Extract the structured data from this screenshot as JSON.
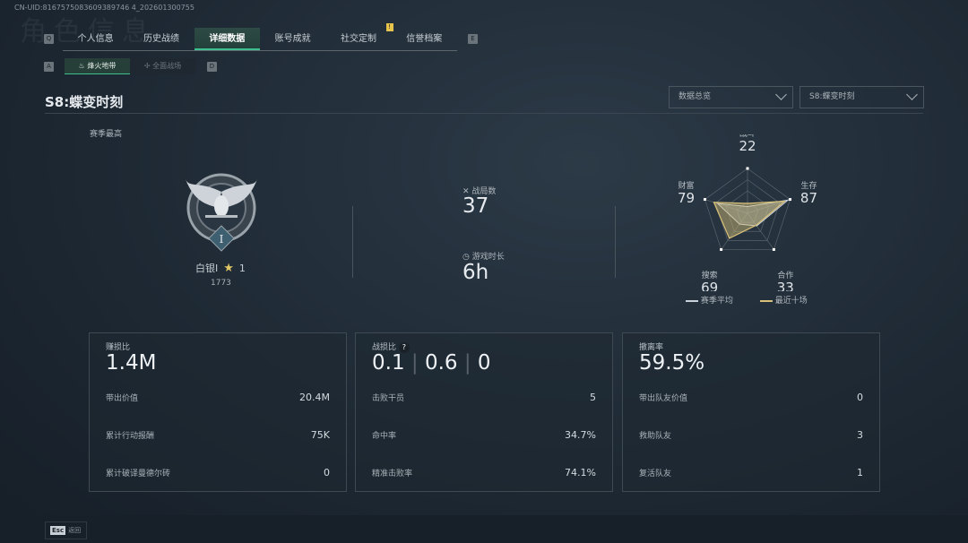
{
  "uid": "CN-UID:8167575083609389746 4_202601300755",
  "page_watermark": "角色信息",
  "tabs": {
    "left_key": "Q",
    "right_key": "E",
    "items": [
      {
        "label": "个人信息"
      },
      {
        "label": "历史战绩"
      },
      {
        "label": "详细数据",
        "active": true
      },
      {
        "label": "账号成就"
      },
      {
        "label": "社交定制",
        "badge": "!"
      },
      {
        "label": "信誉档案"
      }
    ]
  },
  "subtabs": {
    "left_key": "A",
    "right_key": "D",
    "items": [
      {
        "label": "烽火地带",
        "active": true
      },
      {
        "label": "全面战场"
      }
    ]
  },
  "season_title": "S8:蝶变时刻",
  "dropdowns": {
    "view": "数据总览",
    "season": "S8:蝶变时刻"
  },
  "rank": {
    "section_label": "赛季最高",
    "tier": "白银I",
    "stars": "1",
    "score": "1773",
    "emblem_numeral": "I"
  },
  "summary": {
    "matches_label": "战局数",
    "matches": "37",
    "time_label": "游戏时长",
    "time": "6h"
  },
  "radar": {
    "axes": [
      {
        "label": "战斗",
        "value": 22
      },
      {
        "label": "生存",
        "value": 87
      },
      {
        "label": "合作",
        "value": 33
      },
      {
        "label": "搜索",
        "value": 69
      },
      {
        "label": "财富",
        "value": 79
      }
    ],
    "legend": {
      "season_avg": "赛季平均",
      "recent": "最近十场"
    },
    "colors": {
      "season_avg": "#c9d2da",
      "recent": "#d8c178"
    }
  },
  "cards": [
    {
      "title": "赚损比",
      "big": "1.4M",
      "rows": [
        {
          "label": "带出价值",
          "value": "20.4M"
        },
        {
          "label": "累计行动报酬",
          "value": "75K"
        },
        {
          "label": "累计破译曼德尔砖",
          "value": "0"
        }
      ]
    },
    {
      "title": "战损比",
      "help": "?",
      "big_parts": [
        "0.1",
        "0.6",
        "0"
      ],
      "rows": [
        {
          "label": "击败干员",
          "value": "5"
        },
        {
          "label": "命中率",
          "value": "34.7%"
        },
        {
          "label": "精准击败率",
          "value": "74.1%"
        }
      ]
    },
    {
      "title": "撤离率",
      "big": "59.5%",
      "rows": [
        {
          "label": "带出队友价值",
          "value": "0"
        },
        {
          "label": "救助队友",
          "value": "3"
        },
        {
          "label": "复活队友",
          "value": "1"
        }
      ]
    }
  ],
  "footer": {
    "key": "Esc",
    "label": "返回"
  }
}
